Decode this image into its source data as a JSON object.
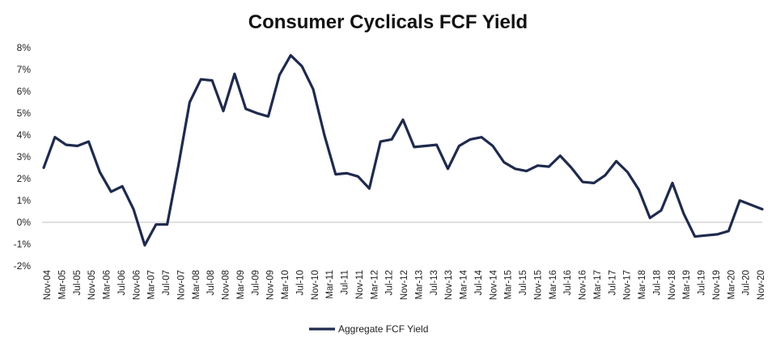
{
  "chart_data": {
    "type": "line",
    "title": "Consumer Cyclicals FCF Yield",
    "xlabel": "",
    "ylabel": "",
    "ylim": [
      -2,
      8
    ],
    "yticks": [
      -2,
      -1,
      0,
      1,
      2,
      3,
      4,
      5,
      6,
      7,
      8
    ],
    "yticklabels": [
      "-2%",
      "-1%",
      "0%",
      "1%",
      "2%",
      "3%",
      "4%",
      "5%",
      "6%",
      "7%",
      "8%"
    ],
    "xticklabels": [
      "Nov-04",
      "Mar-05",
      "Jul-05",
      "Nov-05",
      "Mar-06",
      "Jul-06",
      "Nov-06",
      "Mar-07",
      "Jul-07",
      "Nov-07",
      "Mar-08",
      "Jul-08",
      "Nov-08",
      "Mar-09",
      "Jul-09",
      "Nov-09",
      "Mar-10",
      "Jul-10",
      "Nov-10",
      "Mar-11",
      "Jul-11",
      "Nov-11",
      "Mar-12",
      "Jul-12",
      "Nov-12",
      "Mar-13",
      "Jul-13",
      "Nov-13",
      "Mar-14",
      "Jul-14",
      "Nov-14",
      "Mar-15",
      "Jul-15",
      "Nov-15",
      "Mar-16",
      "Jul-16",
      "Nov-16",
      "Mar-17",
      "Jul-17",
      "Nov-17",
      "Mar-18",
      "Jul-18",
      "Nov-18",
      "Mar-19",
      "Jul-19",
      "Nov-19",
      "Mar-20",
      "Jul-20",
      "Nov-20"
    ],
    "grid": false,
    "legend_position": "bottom-center",
    "series": [
      {
        "name": "Aggregate FCF Yield",
        "color": "#1f2a4d",
        "values": [
          2.5,
          3.9,
          3.55,
          3.5,
          3.7,
          2.3,
          1.4,
          1.65,
          0.6,
          -1.05,
          -0.1,
          -0.1,
          2.6,
          5.5,
          6.55,
          6.5,
          5.1,
          6.8,
          5.2,
          5.0,
          4.85,
          6.75,
          7.65,
          7.15,
          6.1,
          4.0,
          2.2,
          2.25,
          2.1,
          1.55,
          3.7,
          3.8,
          4.7,
          3.45,
          3.5,
          3.55,
          2.45,
          3.5,
          3.8,
          3.9,
          3.5,
          2.75,
          2.45,
          2.35,
          2.6,
          2.55,
          3.05,
          2.5,
          1.85,
          1.8,
          2.15,
          2.8,
          2.3,
          1.5,
          0.2,
          0.55,
          1.8,
          0.4,
          -0.65,
          -0.6,
          -0.55,
          -0.4,
          1.0,
          0.8,
          0.6
        ]
      }
    ]
  }
}
